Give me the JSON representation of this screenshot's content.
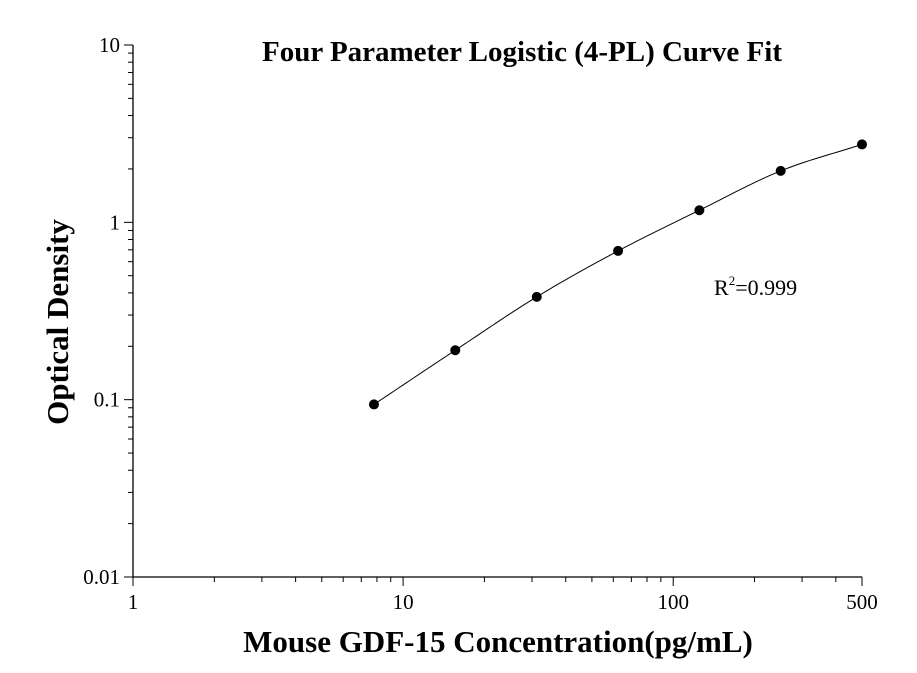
{
  "chart_data": {
    "type": "scatter",
    "title": "Four Parameter Logistic (4-PL) Curve Fit",
    "xlabel": "Mouse GDF-15 Concentration(pg/mL)",
    "ylabel": "Optical Density",
    "x_scale": "log",
    "y_scale": "log",
    "xlim": [
      1,
      500
    ],
    "ylim": [
      0.01,
      10
    ],
    "x_ticks": [
      "1",
      "10",
      "100",
      "500"
    ],
    "y_ticks": [
      "0.01",
      "0.1",
      "1",
      "10"
    ],
    "x": [
      7.8,
      15.6,
      31.25,
      62.5,
      125,
      250,
      500
    ],
    "y": [
      0.094,
      0.19,
      0.38,
      0.69,
      1.17,
      1.95,
      2.75
    ],
    "fit_curve": "4-PL",
    "annotation": {
      "base": "R",
      "sup": "2",
      "rest": "=0.999"
    },
    "grid": false
  }
}
